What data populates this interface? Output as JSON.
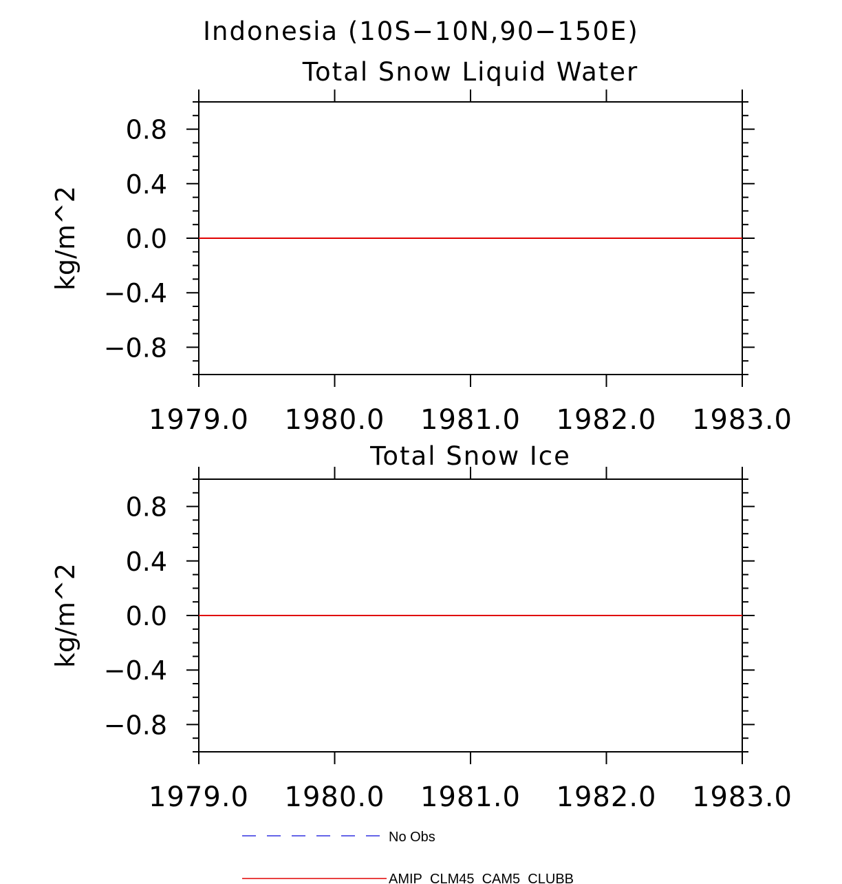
{
  "figure_title": "Indonesia (10S−10N,90−150E)",
  "chart_data": [
    {
      "type": "line",
      "title": "Total Snow Liquid Water",
      "xlabel": "",
      "ylabel": "kg/m^2",
      "xlim": [
        1979.0,
        1983.0
      ],
      "ylim": [
        -1.0,
        1.0
      ],
      "x_ticks": [
        1979.0,
        1980.0,
        1981.0,
        1982.0,
        1983.0
      ],
      "x_tick_labels": [
        "1979.0",
        "1980.0",
        "1981.0",
        "1982.0",
        "1983.0"
      ],
      "y_ticks": [
        -0.8,
        -0.4,
        0.0,
        0.4,
        0.8
      ],
      "y_tick_labels": [
        "−0.8",
        "−0.4",
        "0.0",
        "0.4",
        "0.8"
      ],
      "grid": false,
      "series": [
        {
          "name": "AMIP_CLM45_CAM5_CLUBB",
          "color": "#e00000",
          "style": "solid",
          "x": [
            1979.0,
            1983.0
          ],
          "values": [
            0.0,
            0.0
          ]
        }
      ]
    },
    {
      "type": "line",
      "title": "Total Snow Ice",
      "xlabel": "",
      "ylabel": "kg/m^2",
      "xlim": [
        1979.0,
        1983.0
      ],
      "ylim": [
        -1.0,
        1.0
      ],
      "x_ticks": [
        1979.0,
        1980.0,
        1981.0,
        1982.0,
        1983.0
      ],
      "x_tick_labels": [
        "1979.0",
        "1980.0",
        "1981.0",
        "1982.0",
        "1983.0"
      ],
      "y_ticks": [
        -0.8,
        -0.4,
        0.0,
        0.4,
        0.8
      ],
      "y_tick_labels": [
        "−0.8",
        "−0.4",
        "0.0",
        "0.4",
        "0.8"
      ],
      "grid": false,
      "series": [
        {
          "name": "AMIP_CLM45_CAM5_CLUBB",
          "color": "#e00000",
          "style": "solid",
          "x": [
            1979.0,
            1983.0
          ],
          "values": [
            0.0,
            0.0
          ]
        }
      ]
    }
  ],
  "legend": {
    "placement": "bottom",
    "items": [
      {
        "label": "No Obs",
        "color": "#3030e0",
        "style": "dashed"
      },
      {
        "label": "AMIP_CLM45_CAM5_CLUBB",
        "color": "#e00000",
        "style": "solid"
      }
    ]
  }
}
